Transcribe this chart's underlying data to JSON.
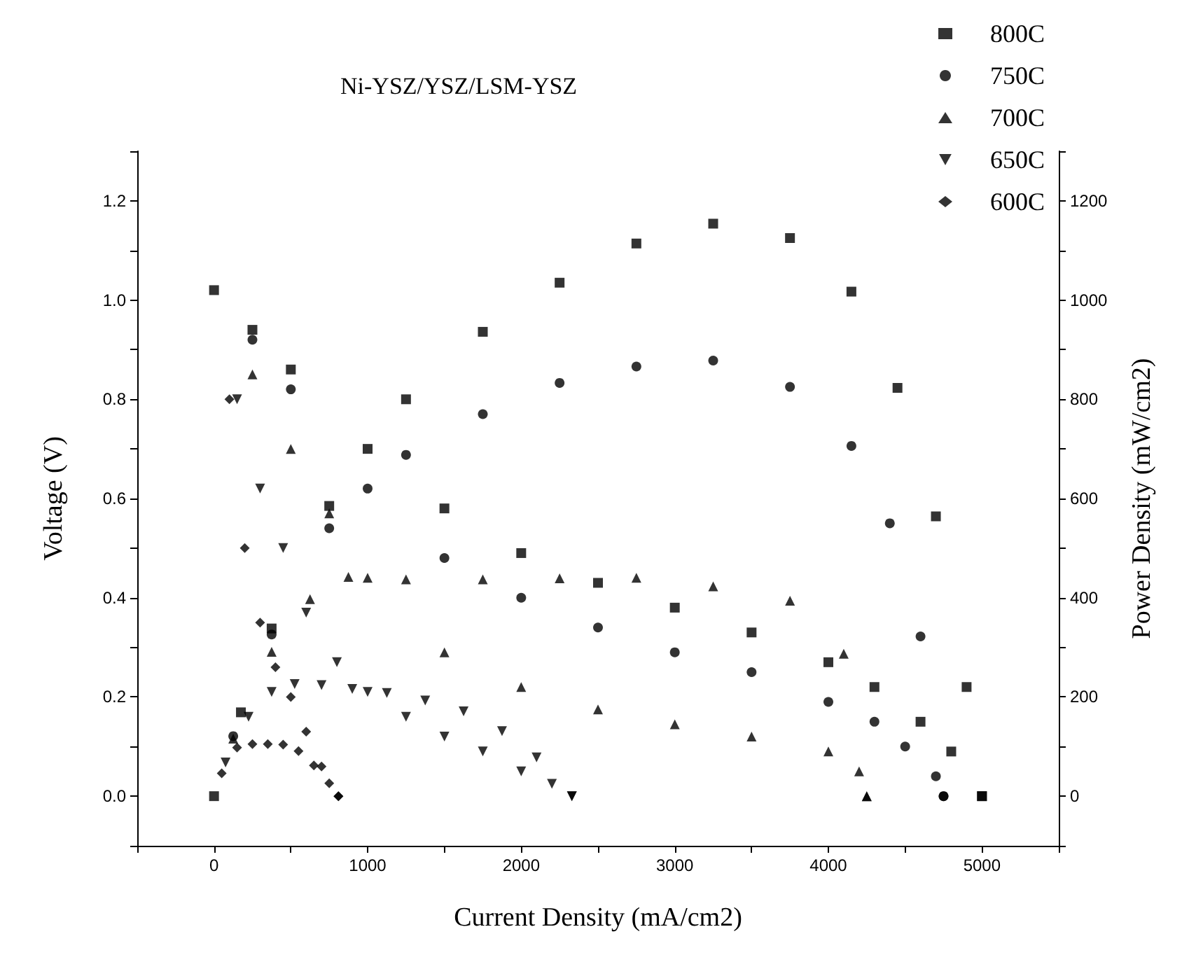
{
  "chart_data": {
    "type": "scatter",
    "title": "Ni-YSZ/YSZ/LSM-YSZ",
    "xlabel": "Current Density (mA/cm2)",
    "ylabel": "Voltage (V)",
    "y2label": "Power Density (mW/cm2)",
    "legend": "top right",
    "grid": false,
    "xlim": [
      -500,
      5500
    ],
    "xticks": [
      {
        "value": -500,
        "label": null
      },
      0,
      {
        "value": 500,
        "label": null
      },
      1000,
      {
        "value": 1500,
        "label": null
      },
      2000,
      {
        "value": 2500,
        "label": null
      },
      3000,
      {
        "value": 3500,
        "label": null
      },
      4000,
      {
        "value": 4500,
        "label": null
      },
      5000,
      {
        "value": 5500,
        "label": null
      }
    ],
    "ylim": [
      -0.1,
      1.3
    ],
    "yticks": [
      {
        "value": -0.1,
        "label": null
      },
      {
        "value": 0,
        "label": "0.0"
      },
      {
        "value": 0.1,
        "label": null
      },
      {
        "value": 0.2,
        "label": "0.2"
      },
      {
        "value": 0.3,
        "label": null
      },
      {
        "value": 0.4,
        "label": "0.4"
      },
      {
        "value": 0.5,
        "label": null
      },
      {
        "value": 0.6,
        "label": "0.6"
      },
      {
        "value": 0.7,
        "label": null
      },
      {
        "value": 0.8,
        "label": "0.8"
      },
      {
        "value": 0.9,
        "label": null
      },
      {
        "value": 1,
        "label": "1.0"
      },
      {
        "value": 1.1,
        "label": null
      },
      {
        "value": 1.2,
        "label": "1.2"
      },
      {
        "value": 1.3,
        "label": null
      }
    ],
    "y2lim": [
      -100,
      1300
    ],
    "y2ticks": [
      {
        "value": -100,
        "label": null
      },
      0,
      {
        "value": 100,
        "label": null
      },
      200,
      {
        "value": 300,
        "label": null
      },
      400,
      {
        "value": 500,
        "label": null
      },
      600,
      {
        "value": 700,
        "label": null
      },
      800,
      {
        "value": 900,
        "label": null
      },
      1000,
      {
        "value": 1100,
        "label": null
      },
      1200,
      {
        "value": 1300,
        "label": null
      }
    ],
    "series": [
      {
        "name": "800C",
        "color": "#000000",
        "marker": "square",
        "x": [
          0,
          250,
          500,
          1000,
          1500,
          2000,
          2500,
          3000,
          3500,
          4000,
          4300,
          4600,
          4800,
          5000
        ],
        "values": [
          1.02,
          0.94,
          0.86,
          0.7,
          0.58,
          0.49,
          0.43,
          0.38,
          0.33,
          0.27,
          0.22,
          0.15,
          0.09,
          0
        ]
      },
      {
        "name": "750C",
        "color": "#000000",
        "marker": "circle",
        "x": [
          250,
          500,
          1000,
          1500,
          2000,
          2500,
          3000,
          3500,
          4000,
          4300,
          4500,
          4700,
          4750
        ],
        "values": [
          0.92,
          0.82,
          0.62,
          0.48,
          0.4,
          0.34,
          0.29,
          0.25,
          0.19,
          0.15,
          0.1,
          0.04,
          0
        ]
      },
      {
        "name": "700C",
        "color": "#000000",
        "marker": "triangle",
        "x": [
          250,
          500,
          750,
          1000,
          1500,
          2000,
          2500,
          3000,
          3500,
          4000,
          4200,
          4250
        ],
        "values": [
          0.85,
          0.7,
          0.57,
          0.44,
          0.29,
          0.22,
          0.175,
          0.145,
          0.12,
          0.09,
          0.05,
          0
        ]
      },
      {
        "name": "650C",
        "color": "#000000",
        "marker": "triangle_down",
        "x": [
          150,
          300,
          450,
          600,
          800,
          1000,
          1250,
          1500,
          1750,
          2000,
          2200,
          2330
        ],
        "values": [
          0.8,
          0.62,
          0.5,
          0.37,
          0.27,
          0.21,
          0.16,
          0.12,
          0.09,
          0.05,
          0.025,
          0
        ]
      },
      {
        "name": "600C",
        "color": "#000000",
        "marker": "diamond",
        "x": [
          100,
          200,
          300,
          400,
          500,
          600,
          700,
          810
        ],
        "values": [
          0.8,
          0.5,
          0.35,
          0.26,
          0.2,
          0.13,
          0.06,
          0
        ]
      },
      {
        "color": "#000000",
        "marker": "square",
        "axis": "y2",
        "x": [
          0,
          175,
          375,
          750,
          1250,
          1750,
          2250,
          2750,
          3250,
          3750,
          4150,
          4450,
          4700,
          4900,
          5000
        ],
        "values": [
          0,
          169,
          338,
          585,
          800,
          936,
          1035,
          1114,
          1154,
          1125,
          1017,
          823,
          564,
          220,
          0
        ]
      },
      {
        "color": "#000000",
        "marker": "circle",
        "axis": "y2",
        "x": [
          125,
          375,
          750,
          1250,
          1750,
          2250,
          2750,
          3250,
          3750,
          4150,
          4400,
          4600,
          4750
        ],
        "values": [
          121,
          326,
          540,
          688,
          770,
          833,
          866,
          878,
          825,
          706,
          550,
          322,
          0
        ]
      },
      {
        "color": "#000000",
        "marker": "triangle",
        "axis": "y2",
        "x": [
          125,
          375,
          625,
          875,
          1250,
          1750,
          2250,
          2750,
          3250,
          3750,
          4100,
          4250
        ],
        "values": [
          116,
          291,
          397,
          442,
          437,
          437,
          439,
          440,
          423,
          394,
          287,
          0
        ]
      },
      {
        "color": "#000000",
        "marker": "triangle_down",
        "axis": "y2",
        "x": [
          75,
          225,
          375,
          525,
          700,
          900,
          1125,
          1375,
          1625,
          1875,
          2100,
          2330
        ],
        "values": [
          68,
          160,
          210,
          226,
          224,
          216,
          208,
          193,
          171,
          131,
          78,
          0
        ]
      },
      {
        "color": "#000000",
        "marker": "diamond",
        "axis": "y2",
        "x": [
          50,
          150,
          250,
          350,
          450,
          550,
          650,
          750,
          810
        ],
        "values": [
          46,
          98,
          105,
          105,
          104,
          91,
          62,
          26,
          0
        ]
      }
    ]
  }
}
